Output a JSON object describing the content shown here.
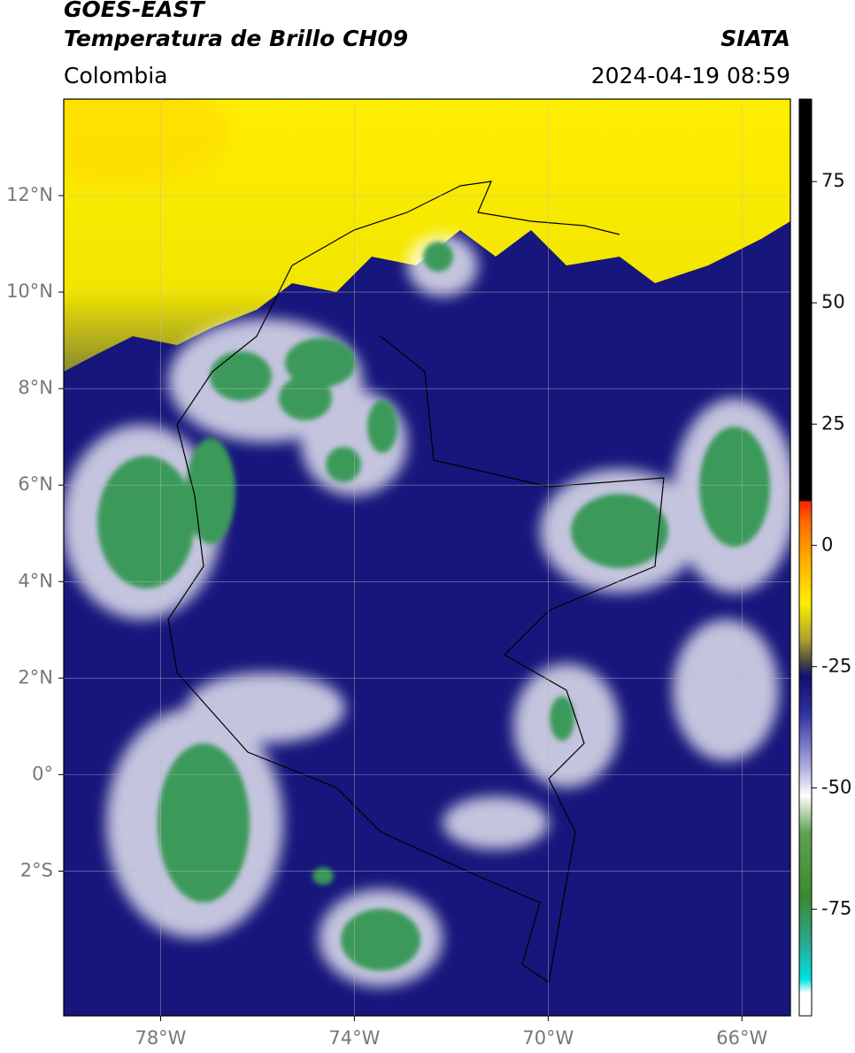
{
  "header": {
    "title_1": "GOES-EAST",
    "title_2": "Temperatura de Brillo CH09",
    "source": "SIATA",
    "region": "Colombia",
    "datetime": "2024-04-19 08:59"
  },
  "map": {
    "xlim": [
      -80,
      -65
    ],
    "ylim": [
      -5,
      14
    ],
    "xticks": [
      {
        "value": -78,
        "label": "78°W"
      },
      {
        "value": -74,
        "label": "74°W"
      },
      {
        "value": -70,
        "label": "70°W"
      },
      {
        "value": -66,
        "label": "66°W"
      }
    ],
    "yticks": [
      {
        "value": 12,
        "label": "12°N"
      },
      {
        "value": 10,
        "label": "10°N"
      },
      {
        "value": 8,
        "label": "8°N"
      },
      {
        "value": 6,
        "label": "6°N"
      },
      {
        "value": 4,
        "label": "4°N"
      },
      {
        "value": 2,
        "label": "2°N"
      },
      {
        "value": 0,
        "label": "0°"
      },
      {
        "value": -2,
        "label": "2°S"
      }
    ],
    "grid": true
  },
  "colorbar": {
    "lim": [
      -97,
      92
    ],
    "ticks": [
      75,
      50,
      25,
      0,
      -25,
      -50,
      -75
    ]
  }
}
